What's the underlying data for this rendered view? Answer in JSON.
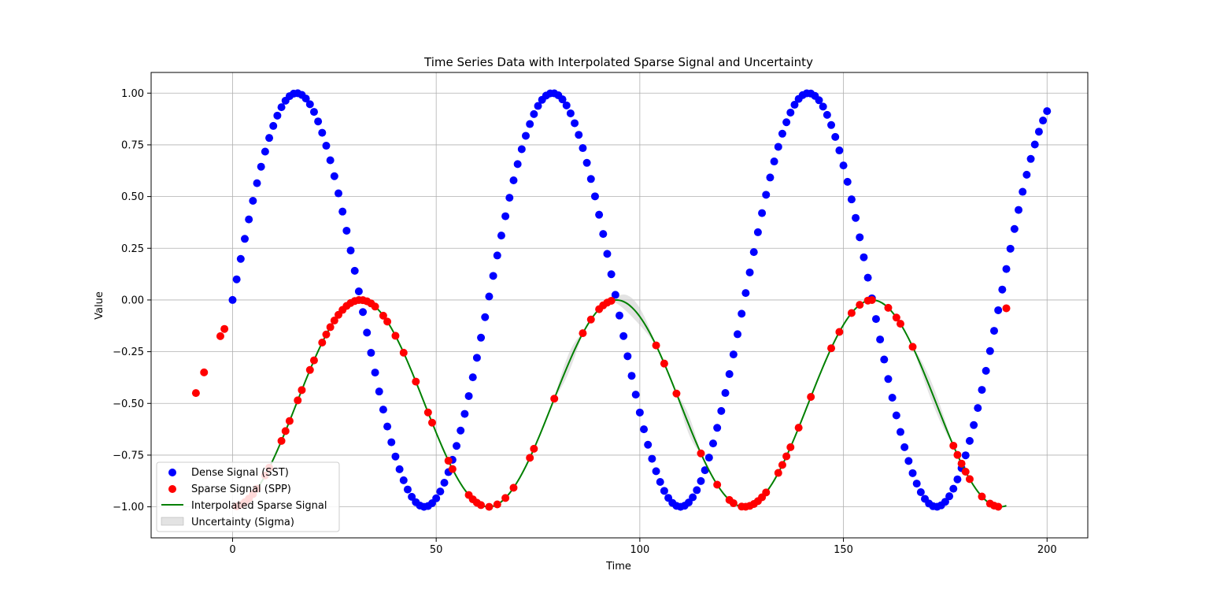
{
  "chart_data": {
    "type": "scatter",
    "title": "Time Series Data with Interpolated Sparse Signal and Uncertainty",
    "xlabel": "Time",
    "ylabel": "Value",
    "xlim": [
      -20,
      210
    ],
    "ylim": [
      -1.15,
      1.1
    ],
    "xticks": [
      0,
      50,
      100,
      150,
      200
    ],
    "xtick_labels": [
      "0",
      "50",
      "100",
      "150",
      "200"
    ],
    "yticks": [
      -1.0,
      -0.75,
      -0.5,
      -0.25,
      0.0,
      0.25,
      0.5,
      0.75,
      1.0
    ],
    "ytick_labels": [
      "−1.00",
      "−0.75",
      "−0.50",
      "−0.25",
      "0.00",
      "0.25",
      "0.50",
      "0.75",
      "1.00"
    ],
    "grid": true,
    "legend_position": "lower-left",
    "series": [
      {
        "name": "Dense Signal (SST)",
        "kind": "scatter",
        "color": "#0000ff",
        "model": "y = sin(x/10), x = 0..200 step 1",
        "x_start": 0,
        "x_end": 200,
        "x_step": 1
      },
      {
        "name": "Sparse Signal (SPP)",
        "kind": "scatter",
        "color": "#ff0000",
        "model": "y = (sin(x/10 - pi/2) - 1) / 2",
        "x": [
          -9,
          -7,
          -3,
          -2,
          1,
          2,
          3,
          4,
          5,
          6,
          8,
          9,
          12,
          13,
          14,
          16,
          17,
          19,
          20,
          22,
          23,
          24,
          25,
          26,
          27,
          28,
          29,
          30,
          31,
          32,
          33,
          34,
          35,
          37,
          38,
          40,
          42,
          45,
          48,
          49,
          53,
          54,
          58,
          59,
          60,
          61,
          63,
          65,
          67,
          69,
          73,
          74,
          79,
          86,
          88,
          90,
          91,
          92,
          93,
          104,
          106,
          109,
          115,
          119,
          122,
          123,
          125,
          126,
          127,
          128,
          129,
          130,
          131,
          134,
          135,
          136,
          137,
          139,
          142,
          147,
          149,
          152,
          154,
          156,
          157,
          161,
          163,
          164,
          167,
          177,
          178,
          179,
          180,
          181,
          184,
          186,
          187,
          188,
          190
        ],
        "y_outliers": {
          "-9": -0.45,
          "-7": -0.35,
          "-3": -0.175,
          "-2": -0.14,
          "190": -0.04
        }
      },
      {
        "name": "Interpolated Sparse Signal",
        "kind": "line",
        "color": "#008000",
        "model": "y = (sin(x/10 - pi/2) - 1) / 2, x = 0..190"
      },
      {
        "name": "Uncertainty (Sigma)",
        "kind": "band",
        "color": "#c8c8c8",
        "gaps": [
          [
            79,
            86
          ],
          [
            93,
            104
          ],
          [
            109,
            115
          ],
          [
            167,
            177
          ]
        ],
        "max_sigma": 0.045
      }
    ]
  }
}
